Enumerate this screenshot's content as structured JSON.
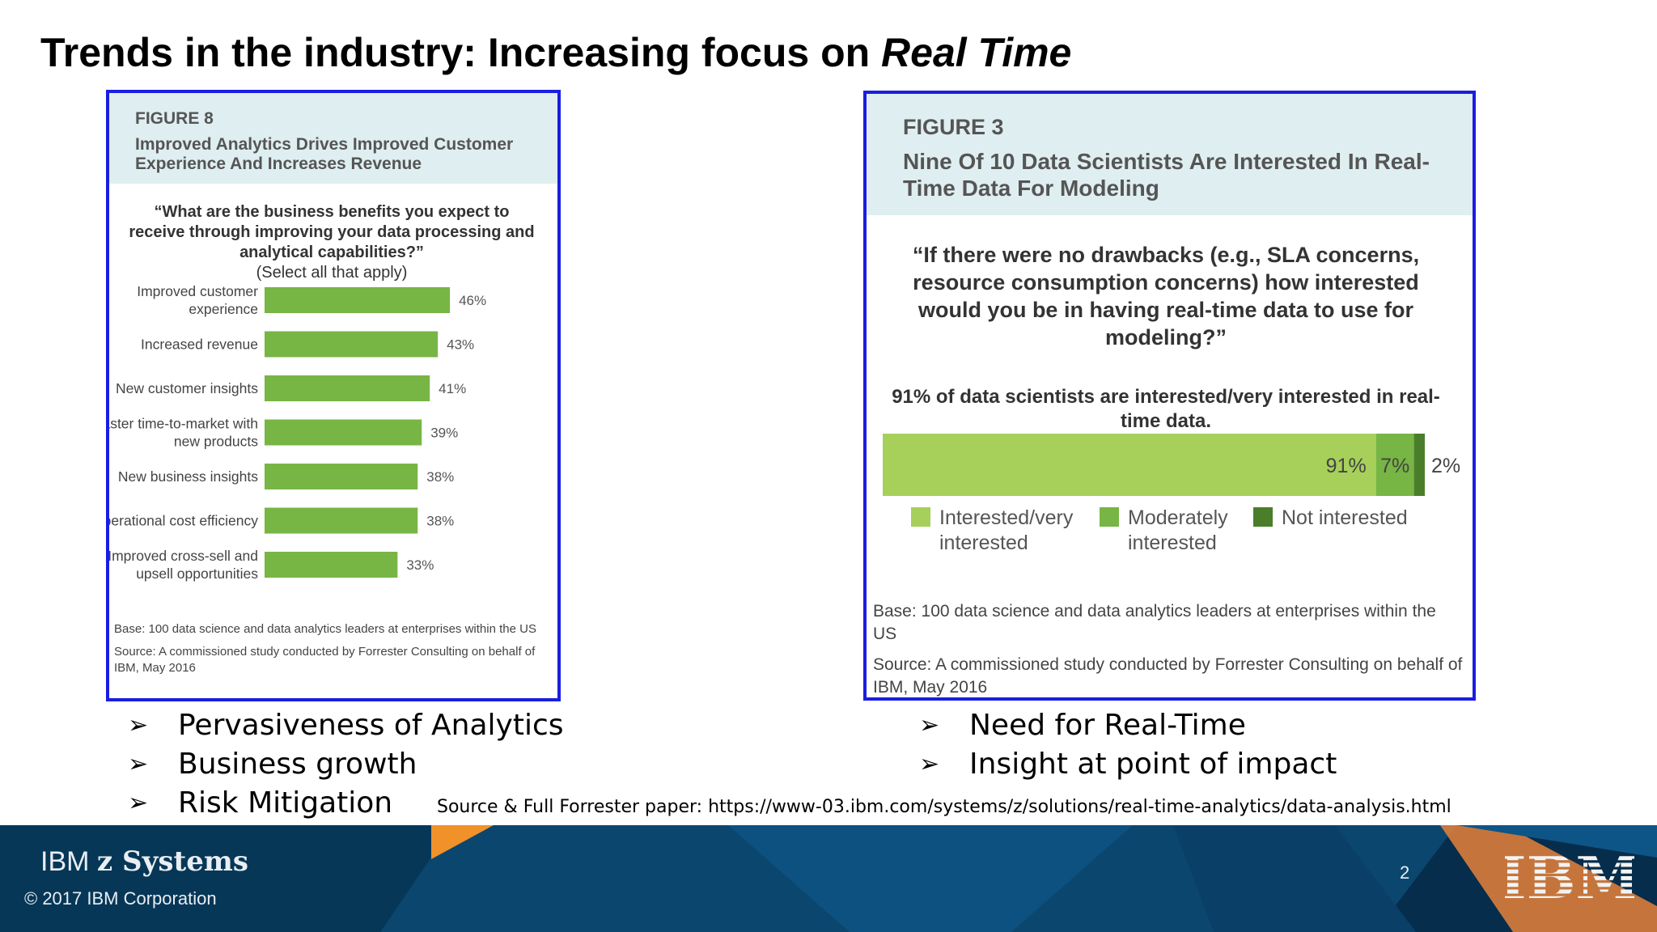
{
  "slide": {
    "title_plain": "Trends in the industry:  Increasing focus on ",
    "title_italic": "Real Time"
  },
  "figure8": {
    "number": "FIGURE 8",
    "subtitle": "Improved Analytics Drives Improved Customer Experience And Increases Revenue",
    "question": "“What are the business benefits you expect to receive through improving your data processing and analytical capabilities?”",
    "select_note": "(Select all that apply)",
    "base": "Base: 100 data science and data analytics leaders at enterprises within the US",
    "source": "Source: A commissioned study conducted by Forrester Consulting on behalf of IBM, May 2016",
    "bar_color": "#77b544"
  },
  "figure3": {
    "number": "FIGURE 3",
    "subtitle": "Nine Of 10 Data Scientists Are Interested In Real-Time Data For Modeling",
    "question": "“If there were no drawbacks (e.g., SLA concerns, resource consumption concerns) how interested would you be in having real-time data to use for modeling?”",
    "note": "91% of data scientists are interested/very interested in real-time data.",
    "base": "Base: 100 data science and data analytics leaders at enterprises within the US",
    "source": "Source: A commissioned study conducted by Forrester Consulting on behalf of IBM, May 2016"
  },
  "chart_data": [
    {
      "type": "bar",
      "orientation": "horizontal",
      "categories": [
        "Improved customer experience",
        "Increased revenue",
        "New customer insights",
        "Faster time-to-market with new products",
        "New business insights",
        "Operational cost efficiency",
        "Improved cross-sell and upsell opportunities"
      ],
      "values": [
        46,
        43,
        41,
        39,
        38,
        38,
        33
      ],
      "value_labels": [
        "46%",
        "43%",
        "41%",
        "39%",
        "38%",
        "38%",
        "33%"
      ],
      "title": "Improved Analytics Drives Improved Customer Experience And Increases Revenue",
      "xlim": [
        0,
        100
      ],
      "grid": false
    },
    {
      "type": "bar",
      "orientation": "horizontal",
      "stacked": true,
      "categories": [
        ""
      ],
      "series": [
        {
          "name": "Interested/very interested",
          "values": [
            91
          ],
          "label": "91%",
          "color": "#a6d05a"
        },
        {
          "name": "Moderately interested",
          "values": [
            7
          ],
          "label": "7%",
          "color": "#77b544"
        },
        {
          "name": "Not interested",
          "values": [
            2
          ],
          "label": "2%",
          "color": "#4a7e2a"
        }
      ],
      "title": "Nine Of 10 Data Scientists Are Interested In Real-Time Data For Modeling",
      "xlim": [
        0,
        100
      ],
      "legend": "bottom",
      "grid": false
    }
  ],
  "bullets_left": [
    {
      "arrow": "➢",
      "text": "Pervasiveness of Analytics"
    },
    {
      "arrow": "➢",
      "text": "Business growth"
    },
    {
      "arrow": "➢",
      "text": "Risk Mitigation"
    }
  ],
  "bullets_right": [
    {
      "arrow": "➢",
      "text": "Need for Real-Time"
    },
    {
      "arrow": "➢",
      "text": "Insight at point of impact"
    }
  ],
  "source_line": "Source & Full Forrester paper:  https://www-03.ibm.com/systems/z/solutions/real-time-analytics/data-analysis.html",
  "footer": {
    "brand_light": "IBM ",
    "brand_bold": "z Systems",
    "copyright": "© 2017 IBM Corporation",
    "page_number": "2",
    "logo_text": "IBM",
    "background": "#062d4b",
    "accent": "#f0912a"
  }
}
